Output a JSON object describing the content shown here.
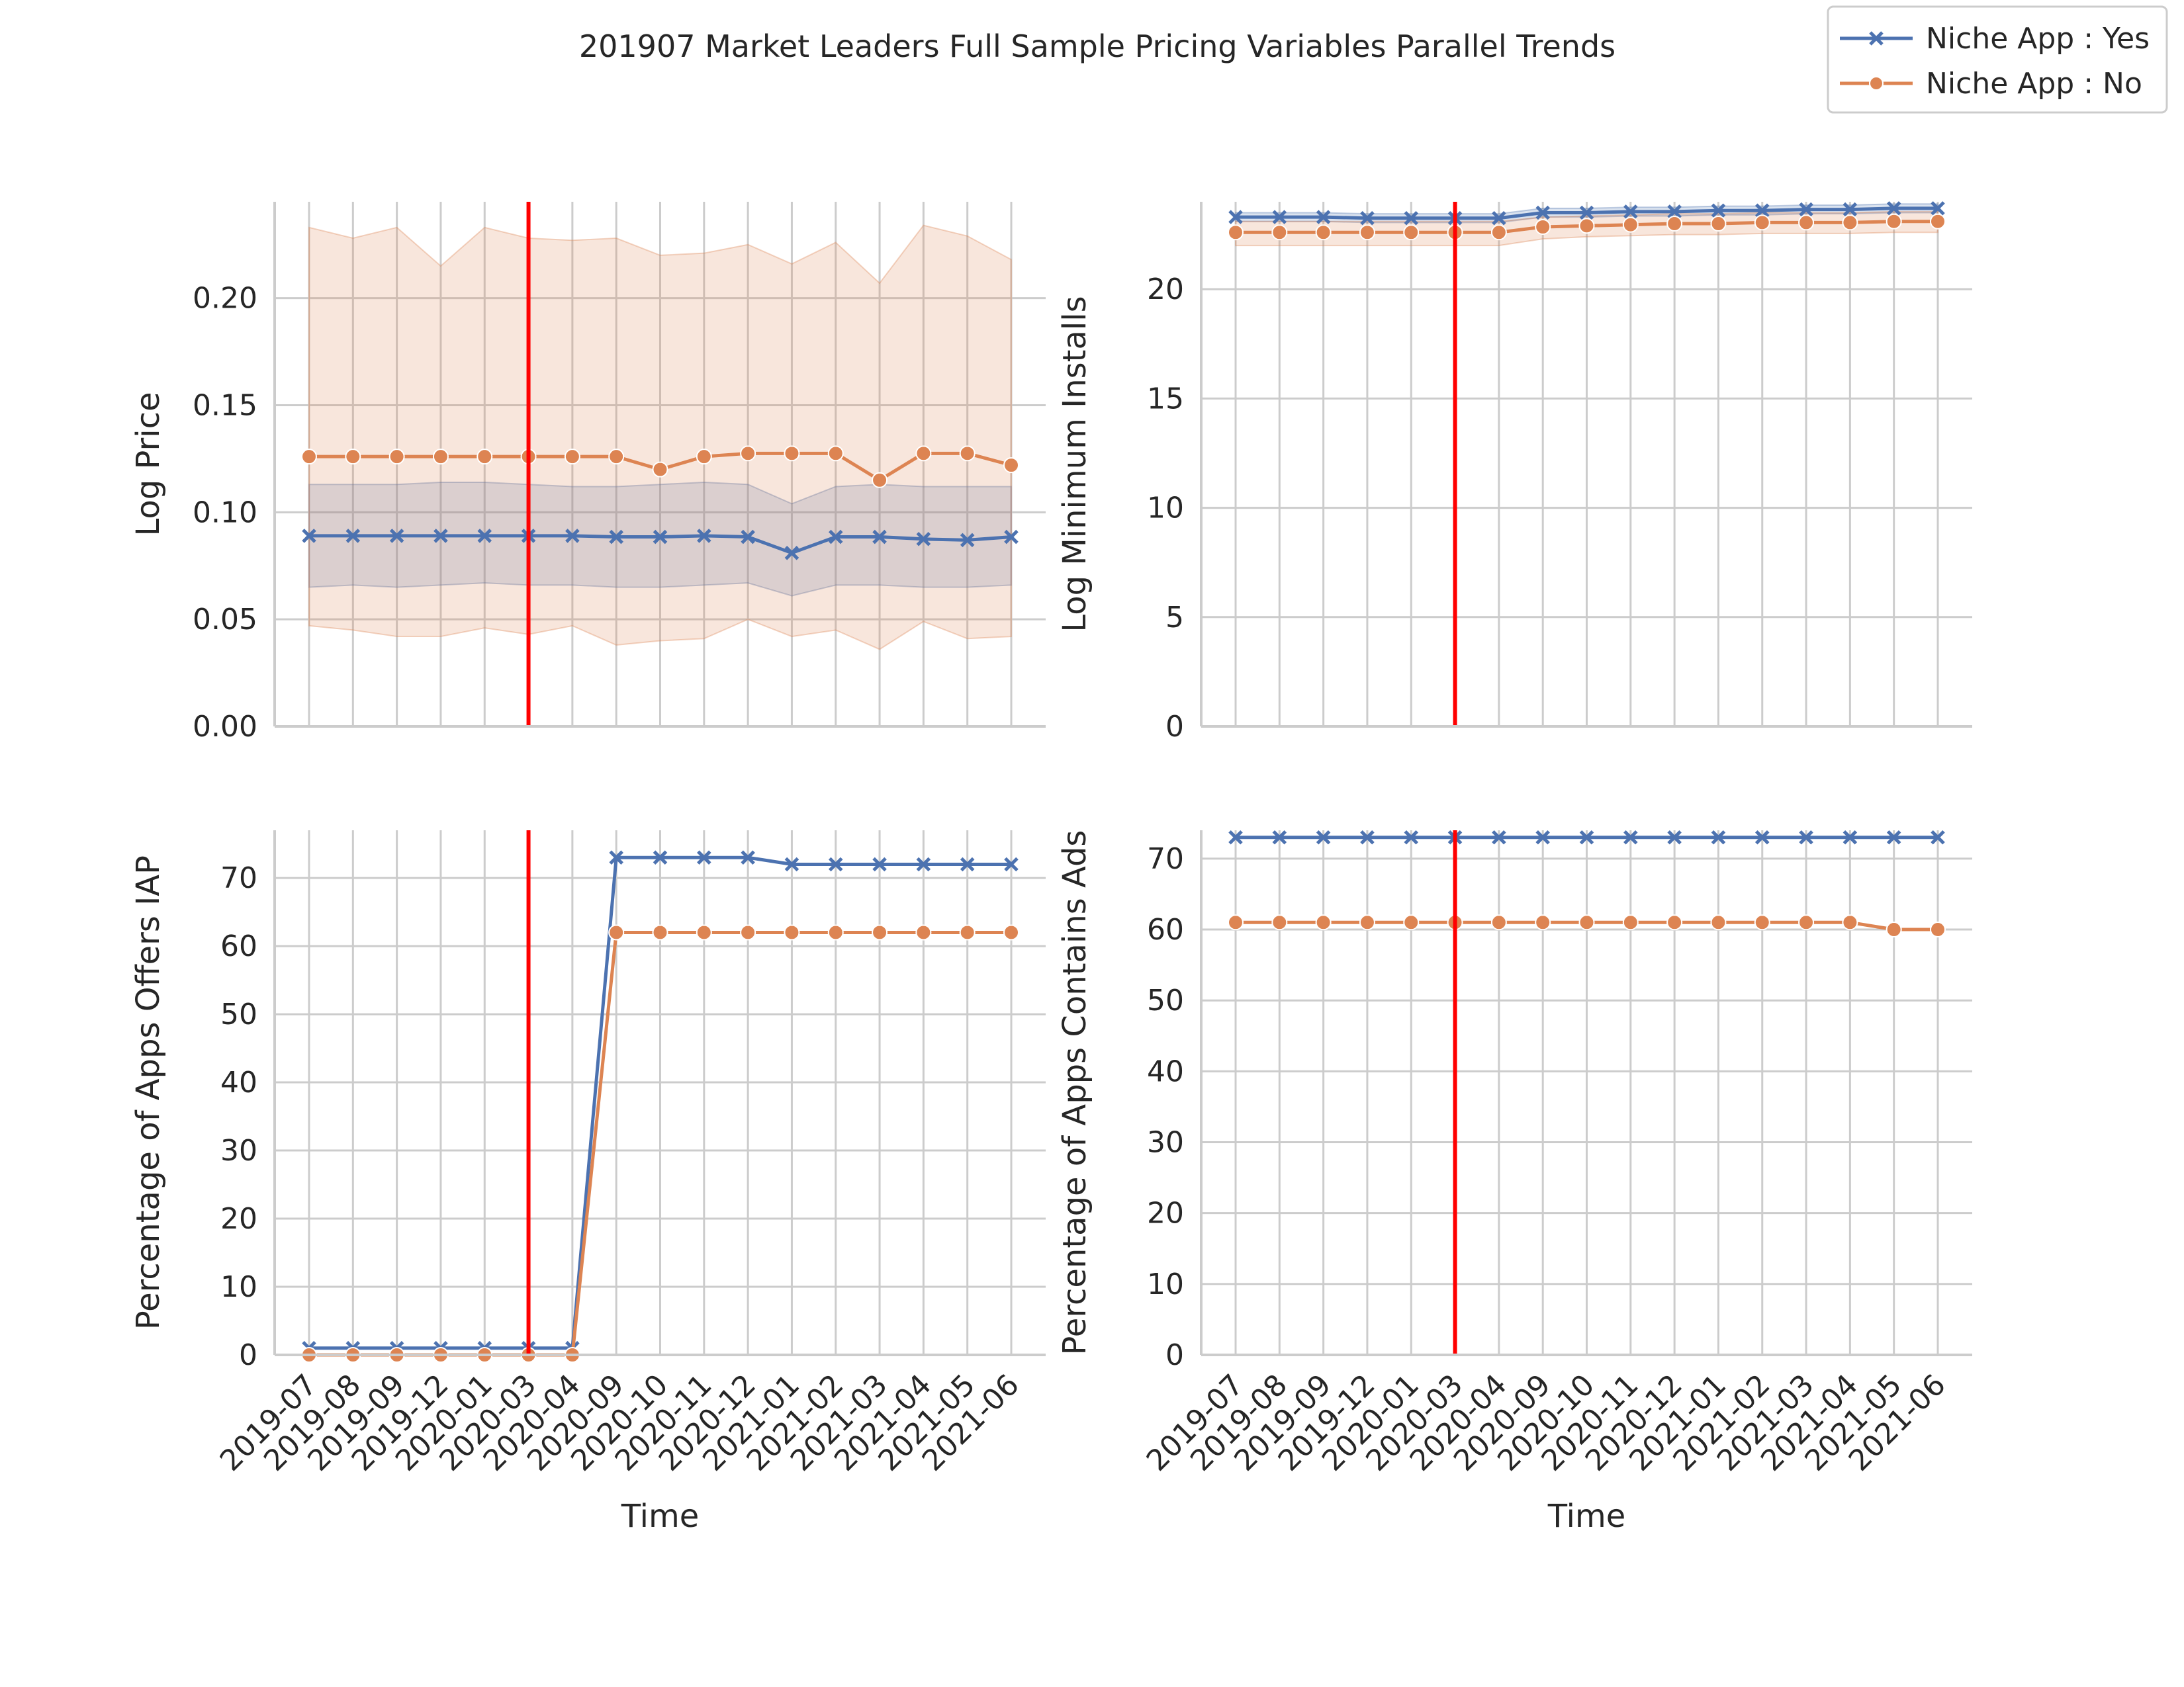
{
  "figure": {
    "title": "201907 Market Leaders Full Sample Pricing Variables Parallel Trends"
  },
  "legend": {
    "placement": "top-right",
    "entries": [
      {
        "label": "Niche App : Yes",
        "color": "#4c72b0",
        "marker": "x"
      },
      {
        "label": "Niche App : No",
        "color": "#dd8452",
        "marker": "circle"
      }
    ]
  },
  "treatment_line": {
    "x": "2020-03",
    "color": "#ff0000"
  },
  "chart_data": [
    {
      "type": "line",
      "ylabel": "Log Price",
      "xlabel": "",
      "ylim": [
        0,
        0.245
      ],
      "yticks": [
        0.0,
        0.05,
        0.1,
        0.15,
        0.2
      ],
      "yticklabels": [
        "0.00",
        "0.05",
        "0.10",
        "0.15",
        "0.20"
      ],
      "categories": [
        "2019-07",
        "2019-08",
        "2019-09",
        "2019-12",
        "2020-01",
        "2020-03",
        "2020-04",
        "2020-09",
        "2020-10",
        "2020-11",
        "2020-12",
        "2021-01",
        "2021-02",
        "2021-03",
        "2021-04",
        "2021-05",
        "2021-06"
      ],
      "show_xticklabels": false,
      "series": [
        {
          "name": "Niche App : Yes",
          "color": "#4c72b0",
          "marker": "x",
          "values": [
            0.089,
            0.089,
            0.089,
            0.089,
            0.089,
            0.089,
            0.089,
            0.0885,
            0.0885,
            0.089,
            0.0885,
            0.081,
            0.0885,
            0.0885,
            0.0875,
            0.087,
            0.0885
          ],
          "ci_low": [
            0.065,
            0.066,
            0.065,
            0.066,
            0.067,
            0.066,
            0.066,
            0.065,
            0.065,
            0.066,
            0.067,
            0.061,
            0.066,
            0.066,
            0.065,
            0.065,
            0.066
          ],
          "ci_high": [
            0.113,
            0.113,
            0.113,
            0.114,
            0.114,
            0.113,
            0.112,
            0.112,
            0.113,
            0.114,
            0.113,
            0.104,
            0.112,
            0.113,
            0.112,
            0.112,
            0.112
          ]
        },
        {
          "name": "Niche App : No",
          "color": "#dd8452",
          "marker": "circle",
          "values": [
            0.126,
            0.126,
            0.126,
            0.126,
            0.126,
            0.126,
            0.126,
            0.126,
            0.12,
            0.126,
            0.1275,
            0.1275,
            0.1275,
            0.115,
            0.1275,
            0.1275,
            0.122
          ],
          "ci_low": [
            0.047,
            0.045,
            0.042,
            0.042,
            0.046,
            0.043,
            0.047,
            0.038,
            0.04,
            0.041,
            0.05,
            0.042,
            0.045,
            0.036,
            0.049,
            0.041,
            0.042
          ],
          "ci_high": [
            0.233,
            0.228,
            0.233,
            0.215,
            0.233,
            0.228,
            0.227,
            0.228,
            0.22,
            0.221,
            0.225,
            0.216,
            0.226,
            0.207,
            0.234,
            0.229,
            0.218
          ]
        }
      ]
    },
    {
      "type": "line",
      "ylabel": "Log Minimum Installs",
      "xlabel": "",
      "ylim": [
        0,
        24
      ],
      "yticks": [
        0,
        5,
        10,
        15,
        20
      ],
      "yticklabels": [
        "0",
        "5",
        "10",
        "15",
        "20"
      ],
      "categories": [
        "2019-07",
        "2019-08",
        "2019-09",
        "2019-12",
        "2020-01",
        "2020-03",
        "2020-04",
        "2020-09",
        "2020-10",
        "2020-11",
        "2020-12",
        "2021-01",
        "2021-02",
        "2021-03",
        "2021-04",
        "2021-05",
        "2021-06"
      ],
      "show_xticklabels": false,
      "series": [
        {
          "name": "Niche App : Yes",
          "color": "#4c72b0",
          "marker": "x",
          "values": [
            23.3,
            23.3,
            23.3,
            23.25,
            23.25,
            23.25,
            23.25,
            23.5,
            23.5,
            23.55,
            23.55,
            23.6,
            23.6,
            23.65,
            23.65,
            23.7,
            23.7
          ],
          "ci_low": [
            23.1,
            23.1,
            23.1,
            23.05,
            23.05,
            23.05,
            23.05,
            23.3,
            23.3,
            23.35,
            23.35,
            23.4,
            23.4,
            23.45,
            23.45,
            23.5,
            23.5
          ],
          "ci_high": [
            23.5,
            23.5,
            23.5,
            23.45,
            23.45,
            23.45,
            23.45,
            23.7,
            23.7,
            23.75,
            23.75,
            23.8,
            23.8,
            23.85,
            23.85,
            23.9,
            23.9
          ]
        },
        {
          "name": "Niche App : No",
          "color": "#dd8452",
          "marker": "circle",
          "values": [
            22.6,
            22.6,
            22.6,
            22.6,
            22.6,
            22.6,
            22.6,
            22.85,
            22.9,
            22.95,
            23.0,
            23.0,
            23.05,
            23.05,
            23.05,
            23.1,
            23.1
          ],
          "ci_low": [
            22.0,
            22.0,
            22.0,
            22.0,
            22.0,
            22.0,
            22.0,
            22.3,
            22.4,
            22.45,
            22.5,
            22.5,
            22.55,
            22.55,
            22.55,
            22.6,
            22.6
          ],
          "ci_high": [
            23.1,
            23.1,
            23.1,
            23.1,
            23.1,
            23.1,
            23.1,
            23.3,
            23.35,
            23.4,
            23.45,
            23.45,
            23.5,
            23.5,
            23.5,
            23.55,
            23.55
          ]
        }
      ]
    },
    {
      "type": "line",
      "ylabel": "Percentage of Apps Offers IAP",
      "xlabel": "Time",
      "ylim": [
        0,
        77
      ],
      "yticks": [
        0,
        10,
        20,
        30,
        40,
        50,
        60,
        70
      ],
      "yticklabels": [
        "0",
        "10",
        "20",
        "30",
        "40",
        "50",
        "60",
        "70"
      ],
      "categories": [
        "2019-07",
        "2019-08",
        "2019-09",
        "2019-12",
        "2020-01",
        "2020-03",
        "2020-04",
        "2020-09",
        "2020-10",
        "2020-11",
        "2020-12",
        "2021-01",
        "2021-02",
        "2021-03",
        "2021-04",
        "2021-05",
        "2021-06"
      ],
      "show_xticklabels": true,
      "series": [
        {
          "name": "Niche App : Yes",
          "color": "#4c72b0",
          "marker": "x",
          "values": [
            1,
            1,
            1,
            1,
            1,
            1,
            1,
            73,
            73,
            73,
            73,
            72,
            72,
            72,
            72,
            72,
            72
          ]
        },
        {
          "name": "Niche App : No",
          "color": "#dd8452",
          "marker": "circle",
          "values": [
            0,
            0,
            0,
            0,
            0,
            0,
            0,
            62,
            62,
            62,
            62,
            62,
            62,
            62,
            62,
            62,
            62
          ]
        }
      ]
    },
    {
      "type": "line",
      "ylabel": "Percentage of Apps Contains Ads",
      "xlabel": "Time",
      "ylim": [
        0,
        74
      ],
      "yticks": [
        0,
        10,
        20,
        30,
        40,
        50,
        60,
        70
      ],
      "yticklabels": [
        "0",
        "10",
        "20",
        "30",
        "40",
        "50",
        "60",
        "70"
      ],
      "categories": [
        "2019-07",
        "2019-08",
        "2019-09",
        "2019-12",
        "2020-01",
        "2020-03",
        "2020-04",
        "2020-09",
        "2020-10",
        "2020-11",
        "2020-12",
        "2021-01",
        "2021-02",
        "2021-03",
        "2021-04",
        "2021-05",
        "2021-06"
      ],
      "show_xticklabels": true,
      "series": [
        {
          "name": "Niche App : Yes",
          "color": "#4c72b0",
          "marker": "x",
          "values": [
            73,
            73,
            73,
            73,
            73,
            73,
            73,
            73,
            73,
            73,
            73,
            73,
            73,
            73,
            73,
            73,
            73
          ]
        },
        {
          "name": "Niche App : No",
          "color": "#dd8452",
          "marker": "circle",
          "values": [
            61,
            61,
            61,
            61,
            61,
            61,
            61,
            61,
            61,
            61,
            61,
            61,
            61,
            61,
            61,
            60,
            60
          ]
        }
      ]
    }
  ]
}
